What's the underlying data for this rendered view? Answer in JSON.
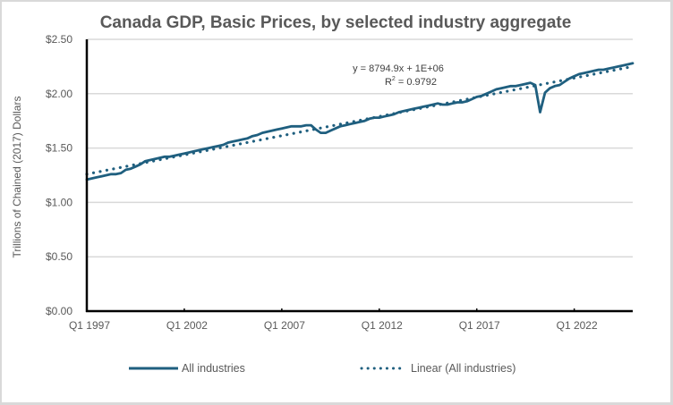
{
  "chart_data": {
    "type": "line",
    "title": "Canada GDP, Basic Prices, by selected industry aggregate",
    "xlabel": "",
    "ylabel": "Trillions of Chained (2017) Dollars",
    "ylim": [
      0,
      2.5
    ],
    "y_ticks": [
      "$0.00",
      "$0.50",
      "$1.00",
      "$1.50",
      "$2.00",
      "$2.50"
    ],
    "y_tick_values": [
      0,
      0.5,
      1.0,
      1.5,
      2.0,
      2.5
    ],
    "x_ticks": [
      "Q1 1997",
      "Q1 2002",
      "Q1 2007",
      "Q1 2012",
      "Q1 2017",
      "Q1 2022"
    ],
    "x_tick_quarter_index": [
      0,
      20,
      40,
      60,
      80,
      100
    ],
    "x_start": "Q1 1997",
    "x_end": "Q1 2025",
    "grid": true,
    "legend_position": "bottom",
    "series": [
      {
        "name": "All industries",
        "color": "#1f5f7f",
        "style": "solid",
        "values": [
          1.21,
          1.22,
          1.23,
          1.24,
          1.25,
          1.26,
          1.26,
          1.27,
          1.3,
          1.31,
          1.33,
          1.35,
          1.38,
          1.39,
          1.4,
          1.41,
          1.42,
          1.42,
          1.43,
          1.44,
          1.45,
          1.46,
          1.47,
          1.48,
          1.49,
          1.5,
          1.51,
          1.52,
          1.53,
          1.55,
          1.56,
          1.57,
          1.58,
          1.59,
          1.61,
          1.62,
          1.64,
          1.65,
          1.66,
          1.67,
          1.68,
          1.69,
          1.7,
          1.7,
          1.7,
          1.71,
          1.71,
          1.67,
          1.64,
          1.64,
          1.66,
          1.68,
          1.7,
          1.71,
          1.72,
          1.73,
          1.74,
          1.75,
          1.77,
          1.78,
          1.78,
          1.79,
          1.8,
          1.81,
          1.83,
          1.84,
          1.85,
          1.86,
          1.87,
          1.88,
          1.89,
          1.9,
          1.91,
          1.9,
          1.9,
          1.91,
          1.92,
          1.92,
          1.93,
          1.95,
          1.97,
          1.98,
          2.0,
          2.02,
          2.04,
          2.05,
          2.06,
          2.07,
          2.07,
          2.08,
          2.09,
          2.1,
          2.08,
          1.83,
          2.01,
          2.05,
          2.07,
          2.08,
          2.11,
          2.14,
          2.16,
          2.18,
          2.19,
          2.2,
          2.21,
          2.22,
          2.22,
          2.23,
          2.24,
          2.25,
          2.26,
          2.27,
          2.28
        ]
      },
      {
        "name": "Linear (All industries)",
        "color": "#1f5f7f",
        "style": "dotted",
        "trendline": true,
        "start_value": 1.26,
        "end_value": 2.25
      }
    ],
    "annotations": {
      "equation": "y = 8794.9x + 1E+06",
      "r_squared_label": "R",
      "r_squared_sup": "2",
      "r_squared_value": " = 0.9792"
    },
    "legend": [
      {
        "label": "All industries",
        "style": "solid"
      },
      {
        "label": "Linear (All industries)",
        "style": "dotted"
      }
    ]
  }
}
